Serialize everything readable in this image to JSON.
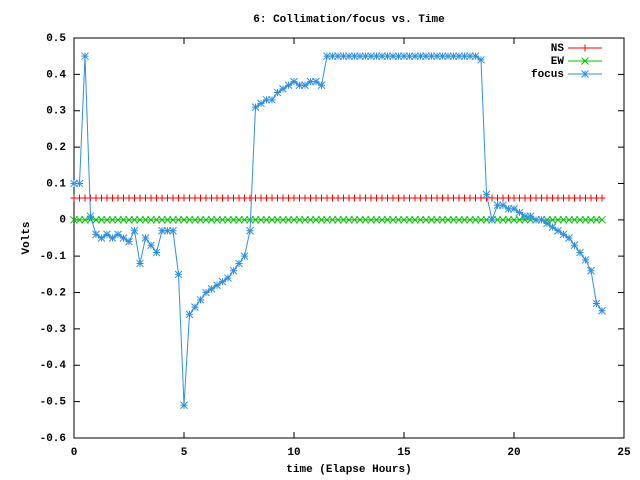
{
  "chart_data": {
    "type": "line",
    "title": "6: Collimation/focus vs. Time",
    "x_label": "time (Elapse Hours)",
    "y_label": "Volts",
    "x": [
      0,
      0.25,
      0.5,
      0.75,
      1,
      1.25,
      1.5,
      1.75,
      2,
      2.25,
      2.5,
      2.75,
      3,
      3.25,
      3.5,
      3.75,
      4,
      4.25,
      4.5,
      4.75,
      5,
      5.25,
      5.5,
      5.75,
      6,
      6.25,
      6.5,
      6.75,
      7,
      7.25,
      7.5,
      7.75,
      8,
      8.25,
      8.5,
      8.75,
      9,
      9.25,
      9.5,
      9.75,
      10,
      10.25,
      10.5,
      10.75,
      11,
      11.25,
      11.5,
      11.75,
      12,
      12.25,
      12.5,
      12.75,
      13,
      13.25,
      13.5,
      13.75,
      14,
      14.25,
      14.5,
      14.75,
      15,
      15.25,
      15.5,
      15.75,
      16,
      16.25,
      16.5,
      16.75,
      17,
      17.25,
      17.5,
      17.75,
      18,
      18.25,
      18.5,
      18.75,
      19,
      19.25,
      19.5,
      19.75,
      20,
      20.25,
      20.5,
      20.75,
      21,
      21.25,
      21.5,
      21.75,
      22,
      22.25,
      22.5,
      22.75,
      23,
      23.25,
      23.5,
      23.75,
      24
    ],
    "series": [
      {
        "name": "NS",
        "color": "#ff0000",
        "marker": "plus",
        "values": [
          0.06,
          0.06,
          0.06,
          0.06,
          0.06,
          0.06,
          0.06,
          0.06,
          0.06,
          0.06,
          0.06,
          0.06,
          0.06,
          0.06,
          0.06,
          0.06,
          0.06,
          0.06,
          0.06,
          0.06,
          0.06,
          0.06,
          0.06,
          0.06,
          0.06,
          0.06,
          0.06,
          0.06,
          0.06,
          0.06,
          0.06,
          0.06,
          0.06,
          0.06,
          0.06,
          0.06,
          0.06,
          0.06,
          0.06,
          0.06,
          0.06,
          0.06,
          0.06,
          0.06,
          0.06,
          0.06,
          0.06,
          0.06,
          0.06,
          0.06,
          0.06,
          0.06,
          0.06,
          0.06,
          0.06,
          0.06,
          0.06,
          0.06,
          0.06,
          0.06,
          0.06,
          0.06,
          0.06,
          0.06,
          0.06,
          0.06,
          0.06,
          0.06,
          0.06,
          0.06,
          0.06,
          0.06,
          0.06,
          0.06,
          0.06,
          0.06,
          0.06,
          0.06,
          0.06,
          0.06,
          0.06,
          0.06,
          0.06,
          0.06,
          0.06,
          0.06,
          0.06,
          0.06,
          0.06,
          0.06,
          0.06,
          0.06,
          0.06,
          0.06,
          0.06,
          0.06,
          0.06
        ]
      },
      {
        "name": "EW",
        "color": "#00c000",
        "marker": "cross",
        "values": [
          0,
          0,
          0,
          0,
          0,
          0,
          0,
          0,
          0,
          0,
          0,
          0,
          0,
          0,
          0,
          0,
          0,
          0,
          0,
          0,
          0,
          0,
          0,
          0,
          0,
          0,
          0,
          0,
          0,
          0,
          0,
          0,
          0,
          0,
          0,
          0,
          0,
          0,
          0,
          0,
          0,
          0,
          0,
          0,
          0,
          0,
          0,
          0,
          0,
          0,
          0,
          0,
          0,
          0,
          0,
          0,
          0,
          0,
          0,
          0,
          0,
          0,
          0,
          0,
          0,
          0,
          0,
          0,
          0,
          0,
          0,
          0,
          0,
          0,
          0,
          0,
          0,
          0,
          0,
          0,
          0,
          0,
          0,
          0,
          0,
          0,
          0,
          0,
          0,
          0,
          0,
          0,
          0,
          0,
          0,
          0,
          0
        ]
      },
      {
        "name": "focus",
        "color": "#3090e0",
        "marker": "star",
        "values": [
          0.1,
          0.1,
          0.45,
          0.01,
          -0.04,
          -0.05,
          -0.04,
          -0.05,
          -0.04,
          -0.05,
          -0.06,
          -0.03,
          -0.12,
          -0.05,
          -0.07,
          -0.09,
          -0.03,
          -0.03,
          -0.03,
          -0.15,
          -0.51,
          -0.26,
          -0.24,
          -0.22,
          -0.2,
          -0.19,
          -0.18,
          -0.17,
          -0.16,
          -0.14,
          -0.12,
          -0.1,
          -0.03,
          0.31,
          0.32,
          0.33,
          0.33,
          0.35,
          0.36,
          0.37,
          0.38,
          0.37,
          0.37,
          0.38,
          0.38,
          0.37,
          0.45,
          0.45,
          0.45,
          0.45,
          0.45,
          0.45,
          0.45,
          0.45,
          0.45,
          0.45,
          0.45,
          0.45,
          0.45,
          0.45,
          0.45,
          0.45,
          0.45,
          0.45,
          0.45,
          0.45,
          0.45,
          0.45,
          0.45,
          0.45,
          0.45,
          0.45,
          0.45,
          0.45,
          0.44,
          0.07,
          0,
          0.04,
          0.04,
          0.03,
          0.03,
          0.02,
          0.01,
          0.01,
          0,
          0,
          -0.01,
          -0.02,
          -0.03,
          -0.04,
          -0.05,
          -0.07,
          -0.09,
          -0.11,
          -0.14,
          -0.23,
          -0.25
        ]
      }
    ],
    "xlim": [
      0,
      25
    ],
    "xticks": [
      0,
      5,
      10,
      15,
      20,
      25
    ],
    "ylim": [
      -0.6,
      0.5
    ],
    "yticks": [
      -0.6,
      -0.5,
      -0.4,
      -0.3,
      -0.2,
      -0.1,
      0,
      0.1,
      0.2,
      0.3,
      0.4,
      0.5
    ],
    "legend": "top-right",
    "grid": false
  }
}
